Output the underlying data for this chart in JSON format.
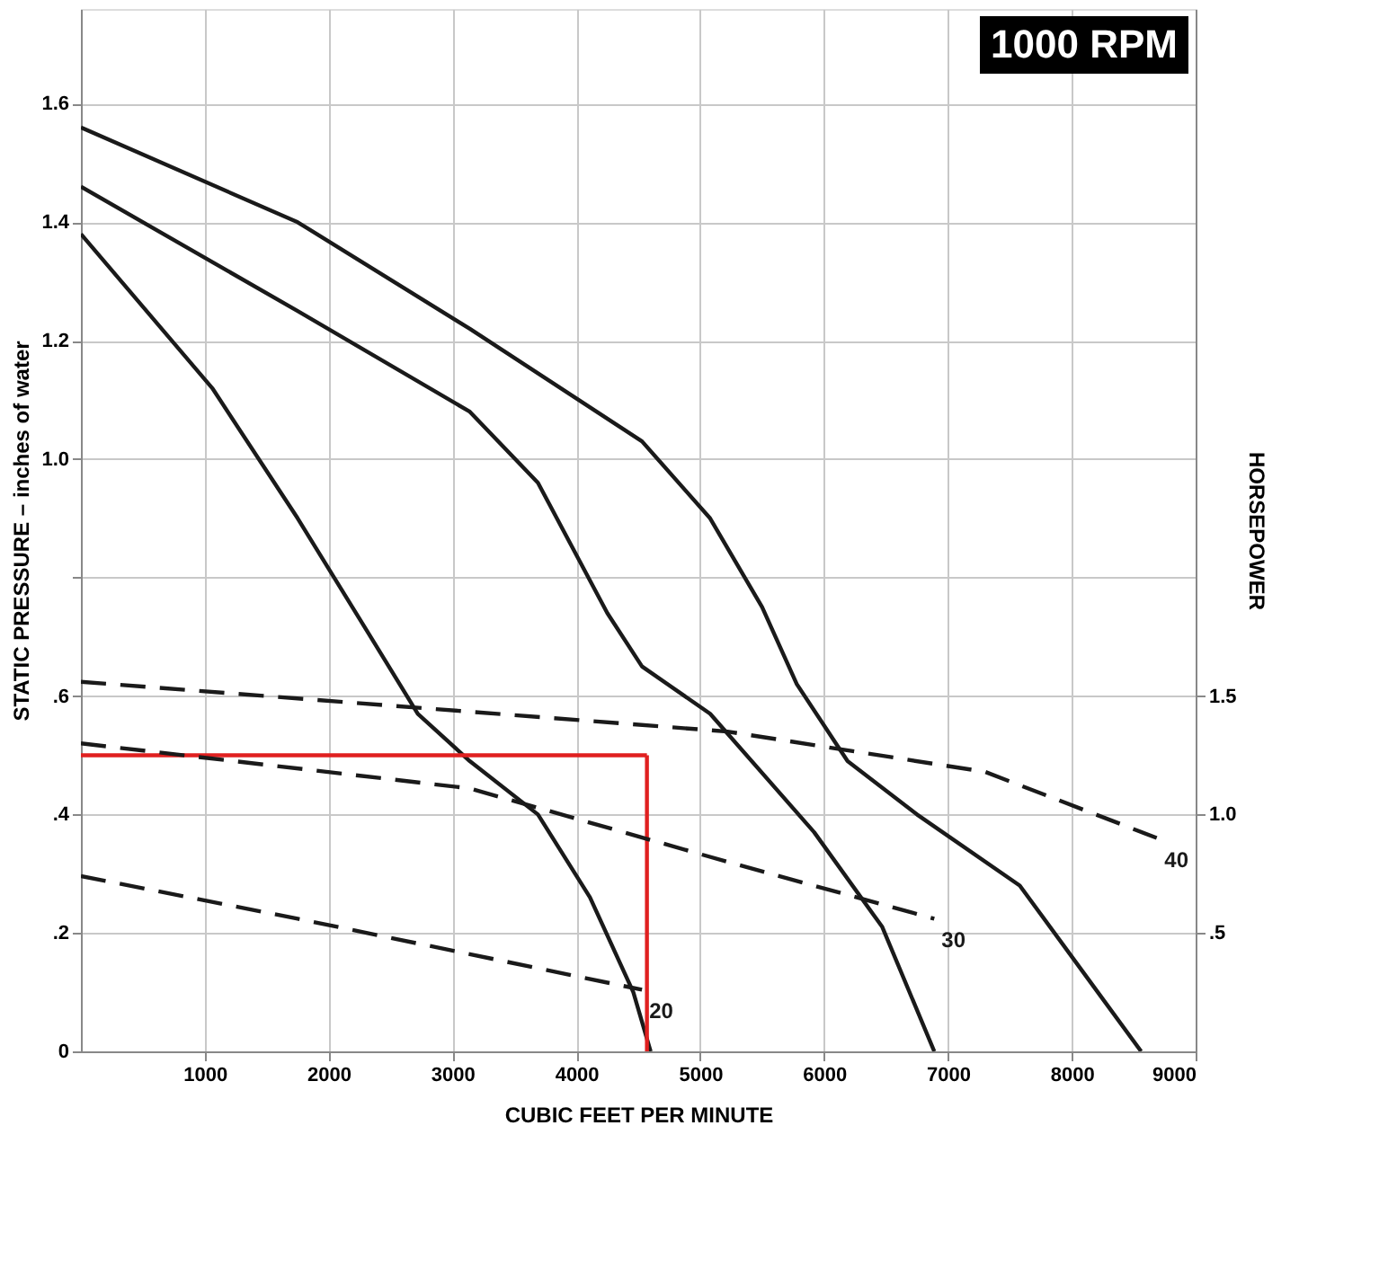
{
  "chart_data": {
    "type": "line",
    "title": "1000 RPM",
    "xlabel": "CUBIC FEET PER MINUTE",
    "ylabel": "STATIC PRESSURE – inches of water",
    "y2label": "HORSEPOWER",
    "xlim": [
      0,
      9000
    ],
    "xticks": [
      1000,
      2000,
      3000,
      4000,
      5000,
      6000,
      7000,
      8000,
      9000
    ],
    "ylim": [
      0,
      1.76
    ],
    "yticks": [
      0,
      {
        "value": 0.2,
        "label": ".2"
      },
      {
        "value": 0.4,
        "label": ".4"
      },
      {
        "value": 0.6,
        "label": ".6"
      },
      {
        "value": 0.8,
        "label": null
      },
      {
        "value": 1.0,
        "label": "1.0"
      },
      1.2,
      1.4,
      1.6
    ],
    "y2lim": [
      0,
      4.4
    ],
    "y2ticks": [
      {
        "value": 0.5,
        "label": ".5"
      },
      {
        "value": 1.0,
        "label": "1.0"
      },
      1.5
    ],
    "grid": true,
    "legend": false,
    "line_style": "solid",
    "marker": "none",
    "series": [
      {
        "color": "#1a1a1a",
        "x": [
          0,
          1750,
          3140,
          4530,
          5080,
          5500,
          5780,
          6190,
          6750,
          7580,
          8210,
          8560
        ],
        "values": [
          1.56,
          1.4,
          1.22,
          1.03,
          0.9,
          0.75,
          0.62,
          0.49,
          0.4,
          0.28,
          0.1,
          0
        ]
      },
      {
        "color": "#1a1a1a",
        "x": [
          0,
          1750,
          3140,
          3690,
          4250,
          4530,
          5080,
          5920,
          6470,
          6890
        ],
        "values": [
          1.46,
          1.25,
          1.08,
          0.96,
          0.74,
          0.65,
          0.57,
          0.37,
          0.21,
          0
        ]
      },
      {
        "color": "#1a1a1a",
        "x": [
          0,
          1060,
          1750,
          2310,
          2720,
          3140,
          3690,
          4110,
          4460,
          4600
        ],
        "values": [
          1.38,
          1.12,
          0.9,
          0.71,
          0.57,
          0.49,
          0.4,
          0.26,
          0.1,
          0
        ]
      },
      {
        "name": "40",
        "axis": "y2",
        "line_style": "dashed",
        "color": "#1a1a1a",
        "x": [
          0,
          5220,
          7300,
          8690
        ],
        "values": [
          1.56,
          1.35,
          1.18,
          0.9
        ]
      },
      {
        "name": "30",
        "axis": "y2",
        "line_style": "dashed",
        "color": "#1a1a1a",
        "x": [
          0,
          3140,
          5220,
          6890
        ],
        "values": [
          1.3,
          1.11,
          0.8,
          0.56
        ]
      },
      {
        "name": "20",
        "axis": "y2",
        "line_style": "dashed",
        "color": "#1a1a1a",
        "x": [
          0,
          1750,
          3420,
          4530
        ],
        "values": [
          0.74,
          0.56,
          0.38,
          0.26
        ]
      },
      {
        "color": "#e02020",
        "x": [
          0,
          4570
        ],
        "values": [
          0.5,
          0.5
        ]
      },
      {
        "color": "#e02020",
        "x": [
          4570,
          4570
        ],
        "values": [
          0.5,
          0
        ]
      }
    ]
  }
}
